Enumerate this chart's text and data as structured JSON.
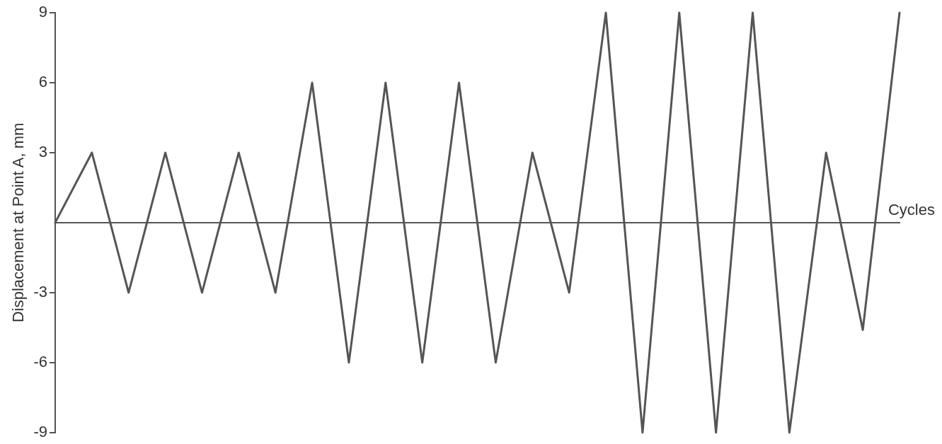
{
  "chart_data": {
    "type": "line",
    "xlabel": "Cycles",
    "ylabel": "Displacement at Point A, mm",
    "categories": [
      null,
      null,
      null,
      null,
      null,
      null,
      null,
      null,
      null,
      null,
      null,
      null,
      null,
      null,
      null,
      null,
      null,
      null,
      null,
      null,
      null,
      null,
      null,
      null
    ],
    "series": [
      {
        "color": "#555555",
        "values": [
          0,
          3,
          -3,
          3,
          -3,
          3,
          -3,
          6,
          -6,
          6,
          -6,
          6,
          -6,
          3,
          -3,
          9,
          -9,
          9,
          -9,
          9,
          -9,
          3,
          -4.6,
          9
        ]
      }
    ],
    "ylim": [
      -9,
      9
    ],
    "yticks": [
      -9,
      -6,
      -3,
      3,
      6,
      9
    ],
    "grid": false,
    "legend": false,
    "tick_labels": "y",
    "marker": "none",
    "line_style": "solid"
  }
}
